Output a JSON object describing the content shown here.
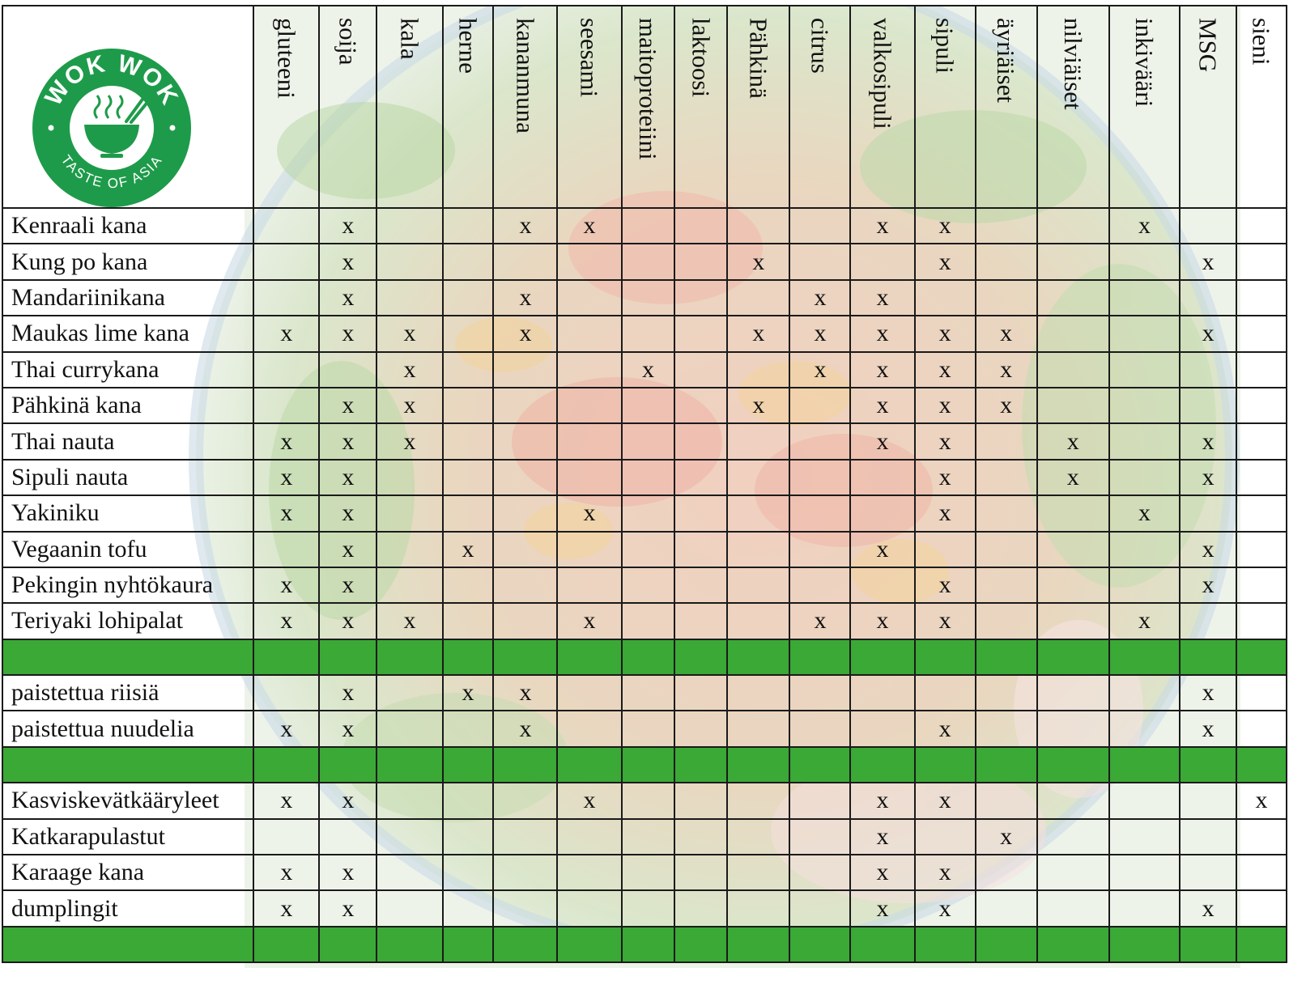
{
  "logo": {
    "top_text": "WOK WOK",
    "bottom_text": "TASTE OF ASIA",
    "brand_color": "#1e9b4a"
  },
  "background_image": "salad-bowl-photo",
  "band_color": "#3aa935",
  "mark_symbol": "x",
  "columns": [
    "gluteeni",
    "soija",
    "kala",
    "herne",
    "kananmuna",
    "seesami",
    "maitoproteiini",
    "laktoosi",
    "Pähkinä",
    "citrus",
    "valkosipuli",
    "sipuli",
    "äyriäiset",
    "nilviäiset",
    "inkivääri",
    "MSG",
    "sieni"
  ],
  "sections": [
    {
      "rows": [
        {
          "name": "Kenraali kana",
          "marks": [
            "",
            "x",
            "",
            "",
            "x",
            "x",
            "",
            "",
            "",
            "",
            "x",
            "x",
            "",
            "",
            "x",
            "",
            ""
          ]
        },
        {
          "name": "Kung po kana",
          "marks": [
            "",
            "x",
            "",
            "",
            "",
            "",
            "",
            "",
            "x",
            "",
            "",
            "x",
            "",
            "",
            "",
            "x",
            ""
          ]
        },
        {
          "name": "Mandariinikana",
          "marks": [
            "",
            "x",
            "",
            "",
            "x",
            "",
            "",
            "",
            "",
            "x",
            "x",
            "",
            "",
            "",
            "",
            "",
            ""
          ]
        },
        {
          "name": "Maukas lime kana",
          "marks": [
            "x",
            "x",
            "x",
            "",
            "x",
            "",
            "",
            "",
            "x",
            "x",
            "x",
            "x",
            "x",
            "",
            "",
            "x",
            ""
          ]
        },
        {
          "name": "Thai currykana",
          "marks": [
            "",
            "",
            "x",
            "",
            "",
            "",
            "x",
            "",
            "",
            "x",
            "x",
            "x",
            "x",
            "",
            "",
            "",
            ""
          ]
        },
        {
          "name": "Pähkinä kana",
          "marks": [
            "",
            "x",
            "x",
            "",
            "",
            "",
            "",
            "",
            "x",
            "",
            "x",
            "x",
            "x",
            "",
            "",
            "",
            ""
          ]
        },
        {
          "name": "Thai nauta",
          "marks": [
            "x",
            "x",
            "x",
            "",
            "",
            "",
            "",
            "",
            "",
            "",
            "x",
            "x",
            "",
            "x",
            "",
            "x",
            ""
          ]
        },
        {
          "name": "Sipuli nauta",
          "marks": [
            "x",
            "x",
            "",
            "",
            "",
            "",
            "",
            "",
            "",
            "",
            "",
            "x",
            "",
            "x",
            "",
            "x",
            ""
          ]
        },
        {
          "name": "Yakiniku",
          "marks": [
            "x",
            "x",
            "",
            "",
            "",
            "x",
            "",
            "",
            "",
            "",
            "",
            "x",
            "",
            "",
            "x",
            "",
            ""
          ]
        },
        {
          "name": "Vegaanin tofu",
          "marks": [
            "",
            "x",
            "",
            "x",
            "",
            "",
            "",
            "",
            "",
            "",
            "x",
            "",
            "",
            "",
            "",
            "x",
            ""
          ]
        },
        {
          "name": "Pekingin nyhtökaura",
          "marks": [
            "x",
            "x",
            "",
            "",
            "",
            "",
            "",
            "",
            "",
            "",
            "",
            "x",
            "",
            "",
            "",
            "x",
            ""
          ]
        },
        {
          "name": "Teriyaki lohipalat",
          "marks": [
            "x",
            "x",
            "x",
            "",
            "",
            "x",
            "",
            "",
            "",
            "x",
            "x",
            "x",
            "",
            "",
            "x",
            "",
            ""
          ]
        }
      ]
    },
    {
      "rows": [
        {
          "name": "paistettua riisiä",
          "marks": [
            "",
            "x",
            "",
            "x",
            "x",
            "",
            "",
            "",
            "",
            "",
            "",
            "",
            "",
            "",
            "",
            "x",
            ""
          ]
        },
        {
          "name": "paistettua nuudelia",
          "marks": [
            "x",
            "x",
            "",
            "",
            "x",
            "",
            "",
            "",
            "",
            "",
            "",
            "x",
            "",
            "",
            "",
            "x",
            ""
          ]
        }
      ]
    },
    {
      "rows": [
        {
          "name": "Kasviskevätkääryleet",
          "marks": [
            "x",
            "x",
            "",
            "",
            "",
            "x",
            "",
            "",
            "",
            "",
            "x",
            "x",
            "",
            "",
            "",
            "",
            "x"
          ]
        },
        {
          "name": "Katkarapulastut",
          "marks": [
            "",
            "",
            "",
            "",
            "",
            "",
            "",
            "",
            "",
            "",
            "x",
            "",
            "x",
            "",
            "",
            "",
            ""
          ]
        },
        {
          "name": "Karaage kana",
          "marks": [
            "x",
            "x",
            "",
            "",
            "",
            "",
            "",
            "",
            "",
            "",
            "x",
            "x",
            "",
            "",
            "",
            "",
            ""
          ]
        },
        {
          "name": "dumplingit",
          "marks": [
            "x",
            "x",
            "",
            "",
            "",
            "",
            "",
            "",
            "",
            "",
            "x",
            "x",
            "",
            "",
            "",
            "x",
            ""
          ]
        }
      ]
    }
  ]
}
